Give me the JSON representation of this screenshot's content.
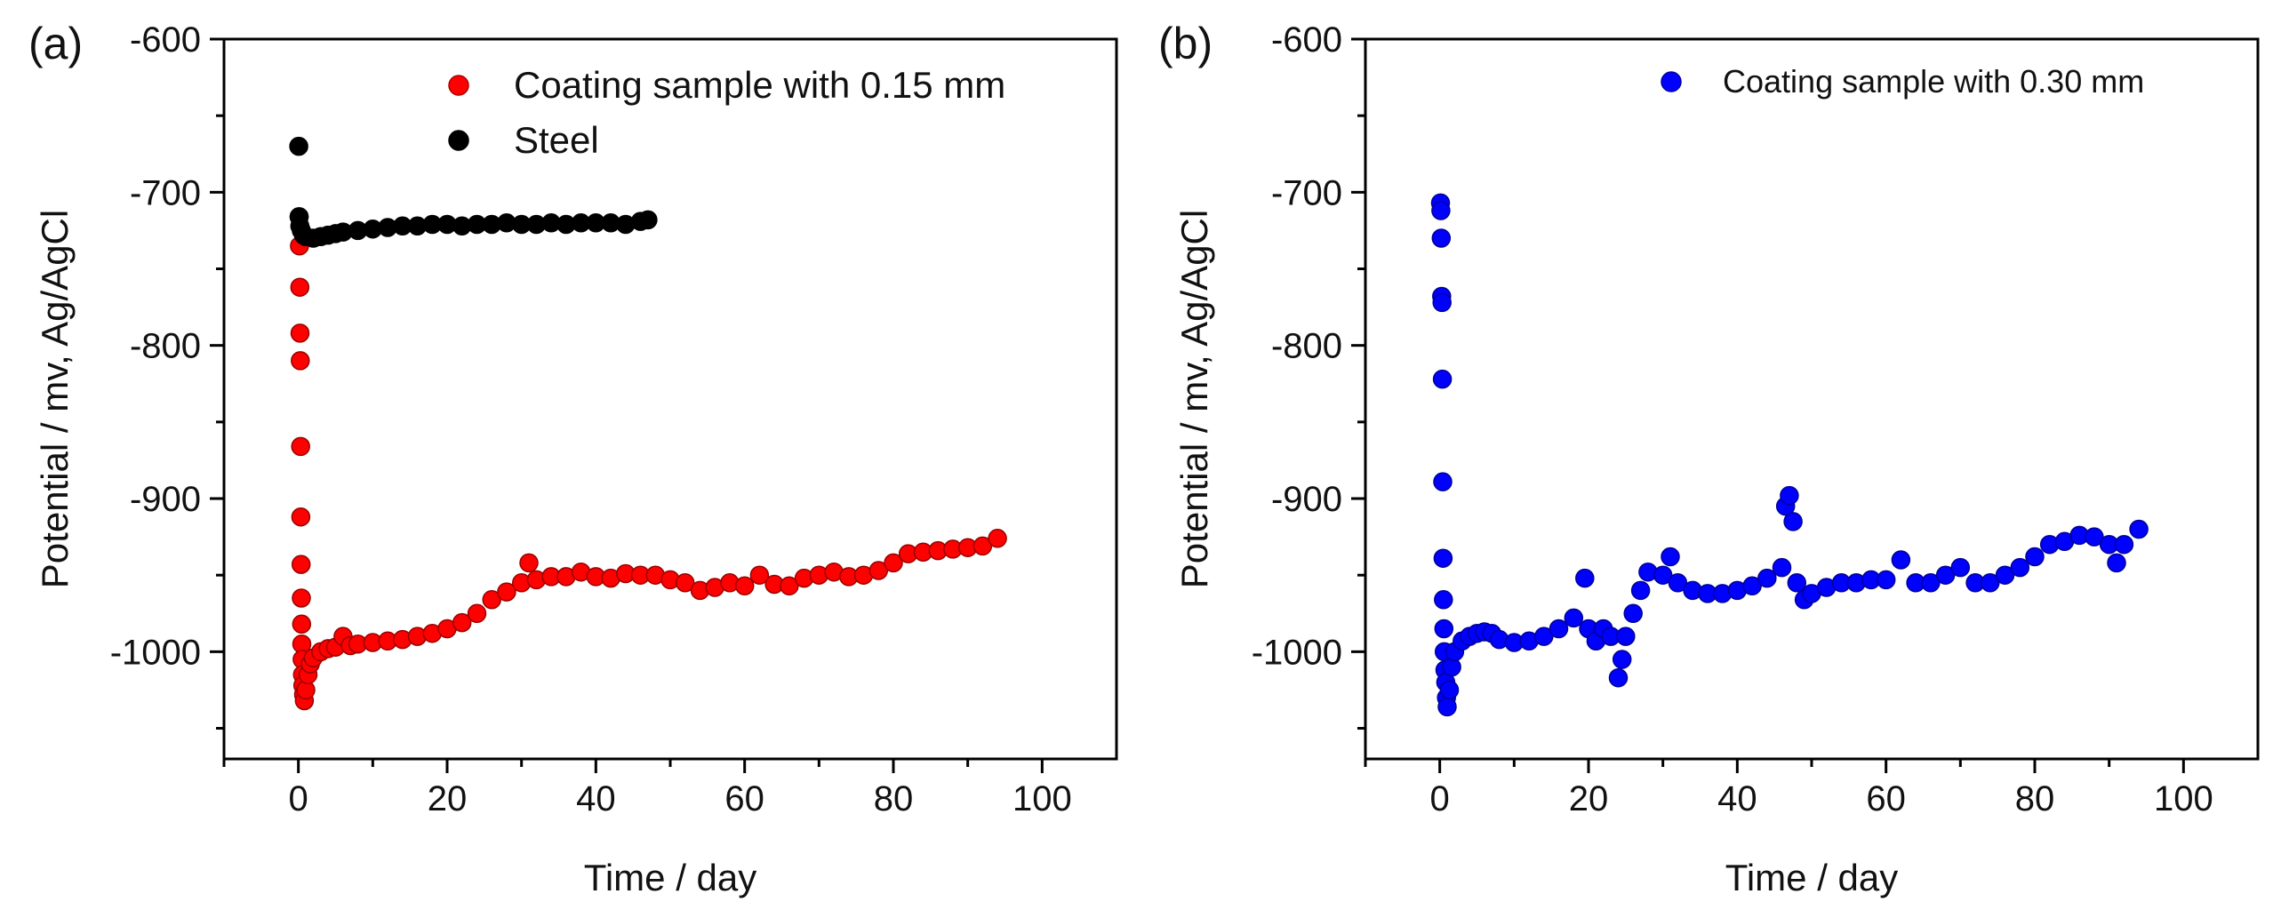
{
  "chart_data": [
    {
      "panel_label": "(a)",
      "type": "scatter",
      "xlabel": "Time / day",
      "ylabel": "Potential / mv, Ag/AgCl",
      "xlim": [
        -10,
        110
      ],
      "ylim": [
        -1070,
        -600
      ],
      "x_ticks": [
        "0",
        "20",
        "40",
        "60",
        "80",
        "100"
      ],
      "y_ticks": [
        "-600",
        "-700",
        "-800",
        "-900",
        "-1000"
      ],
      "grid": false,
      "legend_position": "top-right",
      "series": [
        {
          "name": "Coating sample with 0.15 mm",
          "color": "#ff0000",
          "points": [
            [
              0.1,
              -716
            ],
            [
              0.15,
              -735
            ],
            [
              0.2,
              -762
            ],
            [
              0.22,
              -792
            ],
            [
              0.25,
              -810
            ],
            [
              0.3,
              -866
            ],
            [
              0.33,
              -912
            ],
            [
              0.36,
              -943
            ],
            [
              0.4,
              -965
            ],
            [
              0.43,
              -982
            ],
            [
              0.46,
              -995
            ],
            [
              0.5,
              -1005
            ],
            [
              0.55,
              -1015
            ],
            [
              0.6,
              -1022
            ],
            [
              0.7,
              -1028
            ],
            [
              0.8,
              -1032
            ],
            [
              1.0,
              -1025
            ],
            [
              1.3,
              -1015
            ],
            [
              1.6,
              -1008
            ],
            [
              2.0,
              -1004
            ],
            [
              3.0,
              -1000
            ],
            [
              4.0,
              -998
            ],
            [
              5.0,
              -997
            ],
            [
              6.0,
              -990
            ],
            [
              7.0,
              -996
            ],
            [
              8.0,
              -995
            ],
            [
              10.0,
              -994
            ],
            [
              12.0,
              -993
            ],
            [
              14.0,
              -992
            ],
            [
              16.0,
              -990
            ],
            [
              18.0,
              -988
            ],
            [
              20.0,
              -985
            ],
            [
              22.0,
              -981
            ],
            [
              24.0,
              -975
            ],
            [
              26.0,
              -966
            ],
            [
              28.0,
              -961
            ],
            [
              30.0,
              -955
            ],
            [
              31.0,
              -942
            ],
            [
              32.0,
              -953
            ],
            [
              34.0,
              -951
            ],
            [
              36.0,
              -951
            ],
            [
              38.0,
              -948
            ],
            [
              40.0,
              -951
            ],
            [
              42.0,
              -952
            ],
            [
              44.0,
              -949
            ],
            [
              46.0,
              -950
            ],
            [
              48.0,
              -950
            ],
            [
              50.0,
              -953
            ],
            [
              52.0,
              -955
            ],
            [
              54.0,
              -960
            ],
            [
              56.0,
              -958
            ],
            [
              58.0,
              -955
            ],
            [
              60.0,
              -957
            ],
            [
              62.0,
              -950
            ],
            [
              64.0,
              -956
            ],
            [
              66.0,
              -957
            ],
            [
              68.0,
              -952
            ],
            [
              70.0,
              -950
            ],
            [
              72.0,
              -948
            ],
            [
              74.0,
              -951
            ],
            [
              76.0,
              -950
            ],
            [
              78.0,
              -947
            ],
            [
              80.0,
              -942
            ],
            [
              82.0,
              -936
            ],
            [
              84.0,
              -935
            ],
            [
              86.0,
              -934
            ],
            [
              88.0,
              -933
            ],
            [
              90.0,
              -932
            ],
            [
              92.0,
              -931
            ],
            [
              94.0,
              -926
            ]
          ]
        },
        {
          "name": "Steel",
          "color": "#000000",
          "points": [
            [
              0.05,
              -670
            ],
            [
              0.1,
              -716
            ],
            [
              0.2,
              -722
            ],
            [
              0.4,
              -725
            ],
            [
              0.7,
              -728
            ],
            [
              1.0,
              -729
            ],
            [
              2.0,
              -730
            ],
            [
              3.0,
              -729
            ],
            [
              4.0,
              -728
            ],
            [
              5.0,
              -727
            ],
            [
              6.0,
              -726
            ],
            [
              8.0,
              -725
            ],
            [
              10.0,
              -724
            ],
            [
              12.0,
              -723
            ],
            [
              14.0,
              -722
            ],
            [
              16.0,
              -722
            ],
            [
              18.0,
              -721
            ],
            [
              20.0,
              -721
            ],
            [
              22.0,
              -722
            ],
            [
              24.0,
              -721
            ],
            [
              26.0,
              -721
            ],
            [
              28.0,
              -720
            ],
            [
              30.0,
              -721
            ],
            [
              32.0,
              -721
            ],
            [
              34.0,
              -720
            ],
            [
              36.0,
              -721
            ],
            [
              38.0,
              -720
            ],
            [
              40.0,
              -720
            ],
            [
              42.0,
              -720
            ],
            [
              44.0,
              -721
            ],
            [
              46.0,
              -719
            ],
            [
              47.0,
              -718
            ]
          ]
        }
      ]
    },
    {
      "panel_label": "(b)",
      "type": "scatter",
      "xlabel": "Time / day",
      "ylabel": "Potential / mv, Ag/AgCl",
      "xlim": [
        -10,
        110
      ],
      "ylim": [
        -1070,
        -600
      ],
      "x_ticks": [
        "0",
        "20",
        "40",
        "60",
        "80",
        "100"
      ],
      "y_ticks": [
        "-600",
        "-700",
        "-800",
        "-900",
        "-1000"
      ],
      "grid": false,
      "legend_position": "top-right",
      "series": [
        {
          "name": "Coating sample with 0.30 mm",
          "color": "#0000ff",
          "points": [
            [
              0.1,
              -707
            ],
            [
              0.15,
              -712
            ],
            [
              0.2,
              -730
            ],
            [
              0.25,
              -768
            ],
            [
              0.3,
              -772
            ],
            [
              0.35,
              -822
            ],
            [
              0.4,
              -889
            ],
            [
              0.45,
              -939
            ],
            [
              0.5,
              -966
            ],
            [
              0.55,
              -985
            ],
            [
              0.6,
              -1000
            ],
            [
              0.7,
              -1012
            ],
            [
              0.8,
              -1020
            ],
            [
              0.9,
              -1030
            ],
            [
              1.0,
              -1036
            ],
            [
              1.3,
              -1025
            ],
            [
              1.6,
              -1010
            ],
            [
              2.0,
              -1000
            ],
            [
              3.0,
              -993
            ],
            [
              4.0,
              -990
            ],
            [
              5.0,
              -988
            ],
            [
              6.0,
              -987
            ],
            [
              7.0,
              -988
            ],
            [
              8.0,
              -992
            ],
            [
              10.0,
              -994
            ],
            [
              12.0,
              -993
            ],
            [
              14.0,
              -990
            ],
            [
              16.0,
              -985
            ],
            [
              18.0,
              -978
            ],
            [
              19.5,
              -952
            ],
            [
              20.0,
              -985
            ],
            [
              21.0,
              -993
            ],
            [
              22.0,
              -985
            ],
            [
              23.0,
              -990
            ],
            [
              24.0,
              -1017
            ],
            [
              24.5,
              -1005
            ],
            [
              25.0,
              -990
            ],
            [
              26.0,
              -975
            ],
            [
              27.0,
              -960
            ],
            [
              28.0,
              -948
            ],
            [
              30.0,
              -950
            ],
            [
              31.0,
              -938
            ],
            [
              32.0,
              -955
            ],
            [
              34.0,
              -960
            ],
            [
              36.0,
              -962
            ],
            [
              38.0,
              -962
            ],
            [
              40.0,
              -960
            ],
            [
              42.0,
              -957
            ],
            [
              44.0,
              -952
            ],
            [
              46.0,
              -945
            ],
            [
              46.5,
              -905
            ],
            [
              47.0,
              -898
            ],
            [
              47.5,
              -915
            ],
            [
              48.0,
              -955
            ],
            [
              49.0,
              -966
            ],
            [
              50.0,
              -962
            ],
            [
              52.0,
              -958
            ],
            [
              54.0,
              -955
            ],
            [
              56.0,
              -955
            ],
            [
              58.0,
              -953
            ],
            [
              60.0,
              -953
            ],
            [
              62.0,
              -940
            ],
            [
              64.0,
              -955
            ],
            [
              66.0,
              -955
            ],
            [
              68.0,
              -950
            ],
            [
              70.0,
              -945
            ],
            [
              72.0,
              -955
            ],
            [
              74.0,
              -955
            ],
            [
              76.0,
              -950
            ],
            [
              78.0,
              -945
            ],
            [
              80.0,
              -938
            ],
            [
              82.0,
              -930
            ],
            [
              84.0,
              -928
            ],
            [
              86.0,
              -924
            ],
            [
              88.0,
              -925
            ],
            [
              90.0,
              -930
            ],
            [
              91.0,
              -942
            ],
            [
              92.0,
              -930
            ],
            [
              94.0,
              -920
            ]
          ]
        }
      ]
    }
  ]
}
